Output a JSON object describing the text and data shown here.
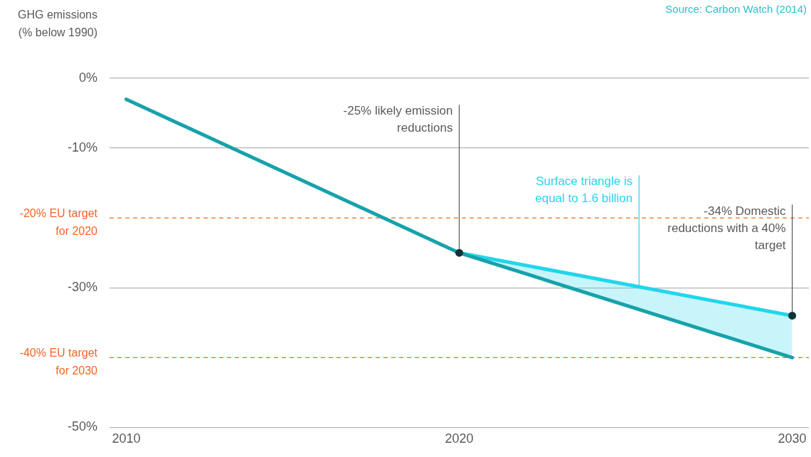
{
  "chart_data": {
    "type": "line",
    "ylabel": "GHG emissions (% below 1990)",
    "xlim": [
      2009.5,
      2030.5
    ],
    "xticks": [
      2010,
      2020,
      2030
    ],
    "ylim": [
      -50,
      0
    ],
    "yticks": [
      {
        "value": 0,
        "label": "0%"
      },
      {
        "value": -10,
        "label": "-10%"
      },
      {
        "value": -30,
        "label": "-30%"
      },
      {
        "value": -50,
        "label": "-50%"
      }
    ],
    "grid": "y",
    "line_style": "solid",
    "series": [
      {
        "color": "#17a2ab",
        "x": [
          2010,
          2020,
          2030
        ],
        "values": [
          -3,
          -25,
          -40
        ]
      },
      {
        "color": "#22d6ec",
        "x": [
          2020,
          2030
        ],
        "values": [
          -25,
          -34
        ],
        "lower": [
          -25,
          -40
        ],
        "upper": [
          -25,
          -34
        ]
      }
    ],
    "ref_lines": [
      {
        "axis": "y",
        "value": -20,
        "label": "-20% EU target for 2020",
        "color": "#f26522",
        "line_style": "dashed"
      },
      {
        "axis": "y",
        "value": -40,
        "label": "-40% EU target for 2030",
        "color": "#f26522",
        "line_style": "dashed"
      }
    ],
    "annotations": [
      {
        "text": "-25% likely emission reductions",
        "x": 2020,
        "y": -25
      },
      {
        "text": "Surface triangle is equal to 1.6 billion",
        "x": 2025.4,
        "y": -30
      },
      {
        "text": "-34% Domestic reductions with a 40% target",
        "x": 2030,
        "y": -34
      },
      "Source: Carbon Watch (2014)"
    ]
  }
}
